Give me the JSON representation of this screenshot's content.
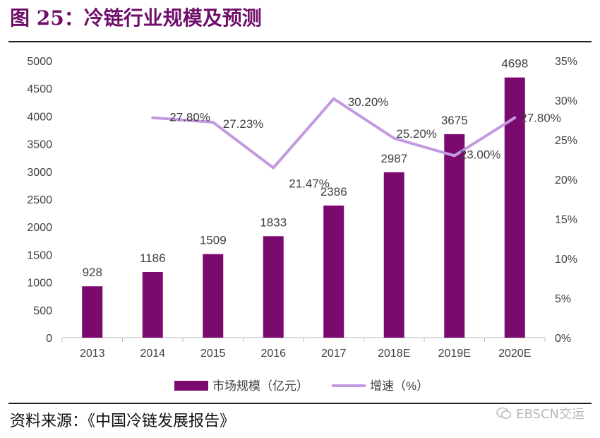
{
  "figure": {
    "title": "图 25：冷链行业规模及预测",
    "source": "资料来源：《中国冷链发展报告》",
    "watermark": "EBSCN交运"
  },
  "colors": {
    "title": "#6f0f6a",
    "bar": "#7b0a6f",
    "line": "#c39ae0",
    "axis": "#bfbfbf",
    "text": "#404040"
  },
  "chart_data": {
    "type": "bar",
    "categories": [
      "2013",
      "2014",
      "2015",
      "2016",
      "2017",
      "2018E",
      "2019E",
      "2020E"
    ],
    "series": [
      {
        "name": "市场规模（亿元）",
        "type": "bar",
        "axis": "left",
        "values": [
          928,
          1186,
          1509,
          1833,
          2386,
          2987,
          3675,
          4698
        ],
        "labels": [
          "928",
          "1186",
          "1509",
          "1833",
          "2386",
          "2987",
          "3675",
          "4698"
        ]
      },
      {
        "name": "增速（%）",
        "type": "line",
        "axis": "right",
        "values": [
          null,
          27.8,
          27.23,
          21.47,
          30.2,
          25.2,
          23.0,
          27.8
        ],
        "labels": [
          "",
          "27.80%",
          "27.23%",
          "21.47%",
          "30.20%",
          "25.20%",
          "23.00%",
          "27.80%"
        ]
      }
    ],
    "y_left": {
      "min": 0,
      "max": 5000,
      "ticks": [
        "0",
        "500",
        "1000",
        "1500",
        "2000",
        "2500",
        "3000",
        "3500",
        "4000",
        "4500",
        "5000"
      ]
    },
    "y_right": {
      "min": 0,
      "max": 35,
      "ticks": [
        "0%",
        "5%",
        "10%",
        "15%",
        "20%",
        "25%",
        "30%",
        "35%"
      ]
    },
    "grid": false,
    "legend": "bottom-center"
  }
}
